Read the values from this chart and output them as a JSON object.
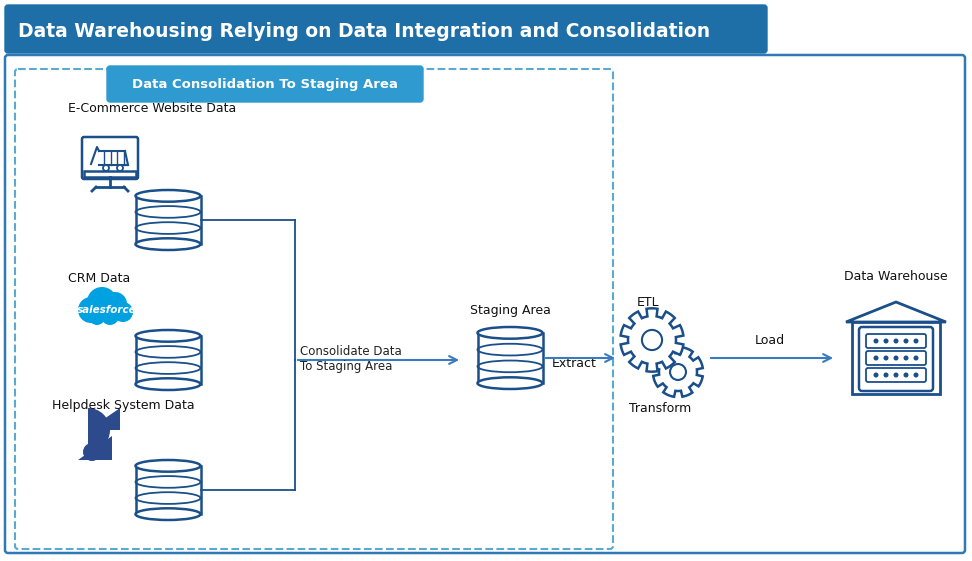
{
  "title": "Data Warehousing Relying on Data Integration and Consolidation",
  "title_bg": "#1e6fa8",
  "title_fg": "#ffffff",
  "subtitle": "Data Consolidation To Staging Area",
  "subtitle_bg": "#2e9ad0",
  "subtitle_fg": "#ffffff",
  "bg_color": "#ffffff",
  "outer_border_color": "#2e7ab8",
  "dashed_box_color": "#5aaad0",
  "icon_color": "#1a4f8a",
  "arrow_color": "#3a7abf",
  "sf_cloud_color": "#00a1e0",
  "zendesk_color": "#2d4a8c",
  "labels": {
    "ecommerce": "E-Commerce Website Data",
    "crm": "CRM Data",
    "helpdesk": "Helpdesk System Data",
    "staging": "Staging Area",
    "etl": "ETL",
    "transform": "Transform",
    "extract": "Extract",
    "load": "Load",
    "warehouse": "Data Warehouse",
    "consolidate": "Consolidate Data\nTo Staging Area"
  }
}
